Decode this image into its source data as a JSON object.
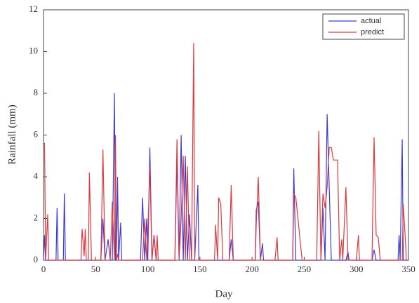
{
  "chart_data": {
    "type": "line",
    "x_label": "Day",
    "y_label": "Rainfall (mm)",
    "x": [
      0,
      1,
      2,
      4,
      5,
      12,
      13,
      14,
      19,
      20,
      21,
      36,
      37,
      39,
      40,
      41,
      43,
      44,
      46,
      55,
      57,
      59,
      62,
      64,
      66,
      68,
      69,
      70,
      71,
      72,
      74,
      75,
      93,
      95,
      97,
      99,
      100,
      102,
      104,
      106,
      108,
      109,
      110,
      126,
      128,
      130,
      132,
      134,
      136,
      138,
      140,
      142,
      144,
      145,
      148,
      149,
      164,
      165,
      167,
      168,
      170,
      172,
      178,
      180,
      182,
      203,
      204,
      206,
      208,
      210,
      211,
      222,
      224,
      225,
      239,
      240,
      242,
      246,
      248,
      262,
      264,
      266,
      268,
      270,
      272,
      274,
      276,
      278,
      282,
      284,
      286,
      287,
      290,
      292,
      293,
      300,
      302,
      303,
      315,
      317,
      319,
      321,
      323,
      340,
      341,
      342,
      344,
      345,
      347,
      348,
      350
    ],
    "series": [
      {
        "name": "actual",
        "color": "#3b3bdc",
        "values": [
          0,
          1.2,
          0,
          0,
          0,
          0,
          2.5,
          0,
          0,
          3.2,
          0,
          0,
          0,
          0,
          0,
          0,
          0,
          0,
          0,
          0,
          2.0,
          0,
          1.0,
          0,
          0,
          8.0,
          0,
          0,
          4.0,
          0,
          1.8,
          0,
          0,
          3.0,
          0,
          2.0,
          0,
          5.4,
          0,
          1.2,
          0,
          0,
          0,
          0,
          5.0,
          0,
          6.0,
          0,
          5.0,
          0,
          2.2,
          0,
          0,
          0,
          3.6,
          0,
          0,
          0,
          0,
          0,
          0,
          0,
          0,
          1.0,
          0,
          0,
          2.4,
          2.8,
          0,
          0.8,
          0,
          0,
          0,
          0,
          0,
          4.4,
          0,
          0,
          0,
          0,
          0,
          0,
          2.5,
          0,
          7.0,
          3.5,
          0,
          0,
          0,
          0,
          0,
          0,
          0,
          0.4,
          0,
          0,
          0,
          0,
          0,
          0.5,
          0,
          0,
          0,
          0,
          1.2,
          0,
          5.8,
          0,
          0,
          0,
          0
        ]
      },
      {
        "name": "predict",
        "color": "#e0383c",
        "values": [
          5.6,
          5.6,
          0,
          2.2,
          0,
          0,
          0,
          0,
          0,
          0,
          0,
          0,
          1.5,
          0.2,
          1.5,
          0,
          0,
          4.2,
          0,
          0,
          5.3,
          0,
          0,
          0,
          2.8,
          0,
          6.0,
          0,
          0.3,
          0,
          0,
          0,
          0,
          0,
          2.0,
          0,
          1.2,
          4.5,
          0,
          1.2,
          0,
          1.2,
          0,
          0,
          5.8,
          0,
          2.0,
          5.0,
          0,
          4.5,
          0,
          0,
          10.4,
          0,
          0,
          0,
          0,
          1.7,
          0,
          3.0,
          2.7,
          0,
          0,
          3.6,
          0,
          0,
          1.7,
          4.0,
          0,
          0,
          0,
          0,
          1.1,
          0,
          0,
          3.2,
          3.0,
          1.0,
          0,
          0,
          6.2,
          0,
          3.2,
          2.5,
          3.5,
          5.4,
          5.4,
          4.8,
          4.8,
          0,
          1.0,
          0,
          3.5,
          0,
          0,
          0,
          1.2,
          0,
          0,
          5.9,
          1.2,
          1.1,
          0,
          0,
          0,
          0,
          0,
          2.7,
          1.0,
          0,
          0
        ]
      }
    ],
    "xlim": [
      0,
      350
    ],
    "xticks": [
      0,
      50,
      100,
      150,
      200,
      250,
      300,
      350
    ],
    "ylim": [
      0,
      12
    ],
    "yticks": [
      0,
      2,
      4,
      6,
      8,
      10,
      12
    ],
    "legend": "upper right"
  }
}
